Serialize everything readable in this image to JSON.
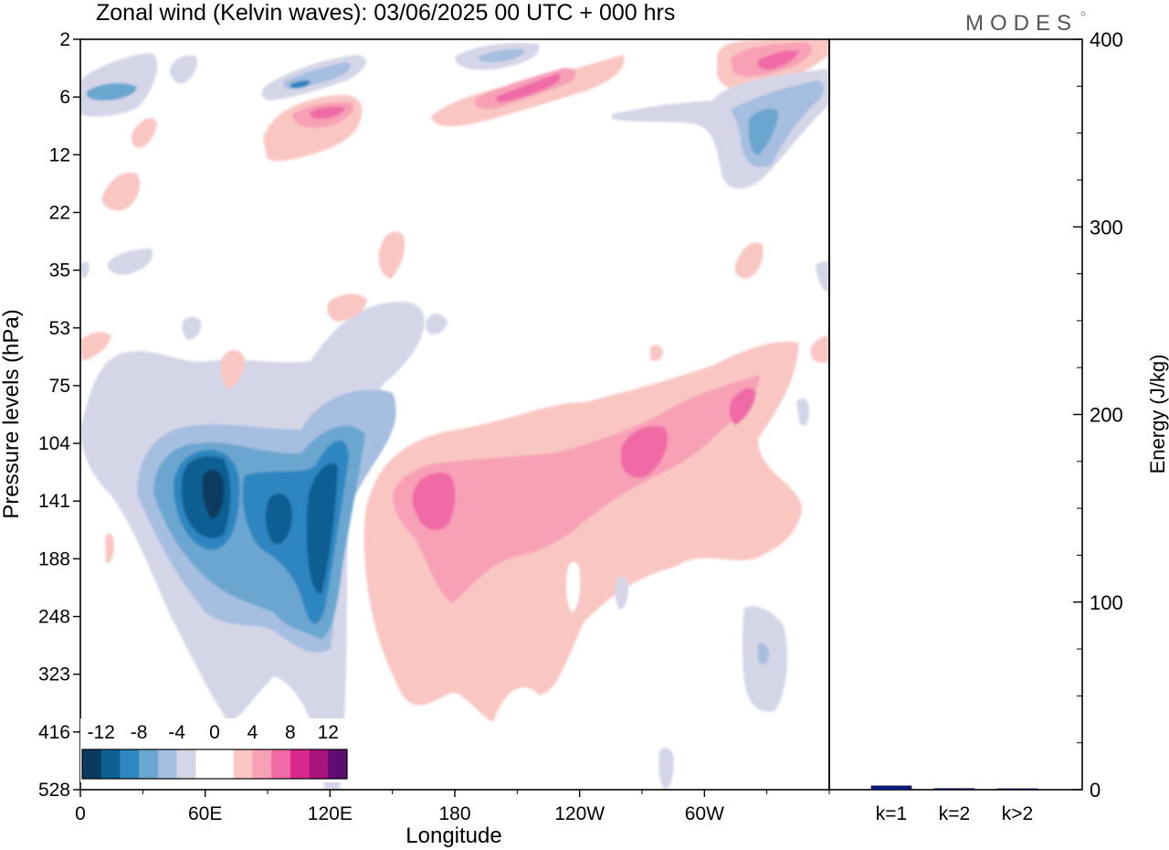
{
  "title": "Zonal wind (Kelvin waves):  03/06/2025  00 UTC  + 000 hrs",
  "logo": "MODES",
  "chart_data": [
    {
      "type": "heatmap",
      "xlabel": "Longitude",
      "ylabel": "Pressure levels (hPa)",
      "x_ticks": [
        "0",
        "60E",
        "120E",
        "180",
        "120W",
        "60W"
      ],
      "x_tick_degrees": [
        0,
        60,
        120,
        180,
        240,
        300
      ],
      "xlim": [
        0,
        360
      ],
      "y_ticks": [
        "2",
        "6",
        "12",
        "22",
        "35",
        "53",
        "75",
        "104",
        "141",
        "188",
        "248",
        "323",
        "416",
        "528"
      ],
      "y_scale": "ordinal pressure levels (top = 2 hPa, bottom = 528 hPa)",
      "colorbar": {
        "labels": [
          "-12",
          "-8",
          "-4",
          "0",
          "4",
          "8",
          "12"
        ],
        "colors": [
          "#0b3a5e",
          "#0e5f93",
          "#2f86c0",
          "#6aa6d0",
          "#a6bedf",
          "#d4d6e8",
          "#ffffff",
          "#ffffff",
          "#f9c6c2",
          "#f7a0b6",
          "#f06aa6",
          "#d92a8c",
          "#a8147a",
          "#5c0d6f"
        ]
      },
      "features": [
        {
          "sign": "easterly (negative)",
          "longitude_range": [
            30,
            125
          ],
          "pressure_range": [
            "75",
            "416"
          ],
          "min_value": -14
        },
        {
          "sign": "westerly (positive)",
          "longitude_range": [
            140,
            330
          ],
          "pressure_range": [
            "53",
            "416"
          ],
          "max_value": 10
        },
        {
          "sign": "westerly (positive)",
          "longitude_range": [
            85,
            120
          ],
          "pressure_range": [
            "6",
            "12"
          ],
          "max_value": 10
        },
        {
          "sign": "westerly (positive)",
          "longitude_range": [
            180,
            230
          ],
          "pressure_range": [
            "2",
            "8"
          ],
          "max_value": 10
        },
        {
          "sign": "easterly (negative)",
          "longitude_range": [
            300,
            360
          ],
          "pressure_range": [
            "6",
            "22"
          ],
          "min_value": -8
        }
      ]
    },
    {
      "type": "bar",
      "ylabel": "Energy (J/kg)",
      "categories": [
        "k=1",
        "k=2",
        "k>2"
      ],
      "values": [
        2,
        0.6,
        0.5
      ],
      "ylim": [
        0,
        400
      ],
      "y_ticks": [
        "0",
        "100",
        "200",
        "300",
        "400"
      ],
      "bar_color": "#0c1a8a"
    }
  ]
}
